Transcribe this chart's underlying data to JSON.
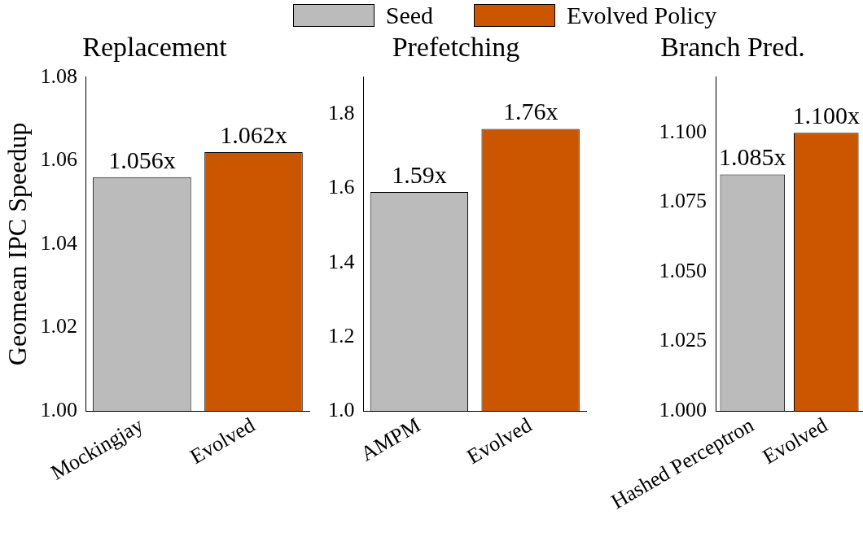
{
  "chart_data": [
    {
      "type": "bar",
      "title": "Replacement",
      "ylabel": "Geomean IPC Speedup",
      "categories": [
        "Mockingjay",
        "Evolved"
      ],
      "legend": "top",
      "series": [
        {
          "name": "Seed",
          "color": "#bbbbbb",
          "values": [
            1.056,
            null
          ],
          "value_labels": [
            "1.056x",
            null
          ]
        },
        {
          "name": "Evolved Policy",
          "color": "#cc5500",
          "values": [
            null,
            1.062
          ],
          "value_labels": [
            null,
            "1.062x"
          ]
        }
      ],
      "ylim": [
        1.0,
        1.08
      ],
      "yticks": [
        {
          "value": 1.0,
          "label": "1.00"
        },
        {
          "value": 1.02,
          "label": "1.02"
        },
        {
          "value": 1.04,
          "label": "1.04"
        },
        {
          "value": 1.06,
          "label": "1.06"
        },
        {
          "value": 1.08,
          "label": "1.08"
        }
      ],
      "grid": false
    },
    {
      "type": "bar",
      "title": "Prefetching",
      "categories": [
        "AMPM",
        "Evolved"
      ],
      "series": [
        {
          "color": "#bbbbbb",
          "values": [
            1.59,
            null
          ],
          "value_labels": [
            "1.59x",
            null
          ]
        },
        {
          "color": "#cc5500",
          "values": [
            null,
            1.76
          ],
          "value_labels": [
            null,
            "1.76x"
          ]
        }
      ],
      "ylim": [
        1.0,
        1.9
      ],
      "yticks": [
        {
          "value": 1.0,
          "label": "1.0"
        },
        {
          "value": 1.2,
          "label": "1.2"
        },
        {
          "value": 1.4,
          "label": "1.4"
        },
        {
          "value": 1.6,
          "label": "1.6"
        },
        {
          "value": 1.8,
          "label": "1.8"
        }
      ],
      "grid": false
    },
    {
      "type": "bar",
      "title": "Branch Pred.",
      "categories": [
        "Hashed Perceptron",
        "Evolved"
      ],
      "series": [
        {
          "color": "#bbbbbb",
          "values": [
            1.085,
            null
          ],
          "value_labels": [
            "1.085x",
            null
          ]
        },
        {
          "color": "#cc5500",
          "values": [
            null,
            1.1
          ],
          "value_labels": [
            null,
            "1.100x"
          ]
        }
      ],
      "ylim": [
        1.0,
        1.12
      ],
      "yticks": [
        {
          "value": 1.0,
          "label": "1.000"
        },
        {
          "value": 1.025,
          "label": "1.025"
        },
        {
          "value": 1.05,
          "label": "1.050"
        },
        {
          "value": 1.075,
          "label": "1.075"
        },
        {
          "value": 1.1,
          "label": "1.100"
        }
      ],
      "grid": false
    }
  ]
}
